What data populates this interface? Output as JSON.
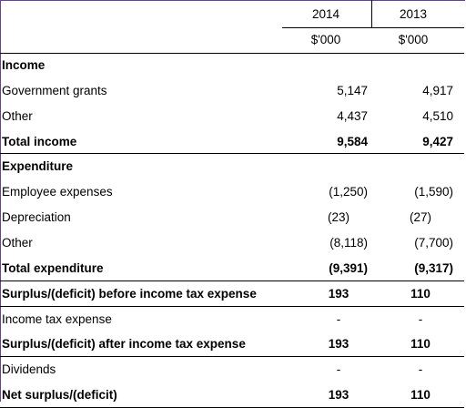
{
  "header": {
    "years": [
      "2014",
      "2013"
    ],
    "units": [
      "$'000",
      "$'000"
    ]
  },
  "rows": [
    {
      "label": "Income",
      "v2014": "",
      "v2013": "",
      "bold": true
    },
    {
      "label": "Government grants",
      "v2014": "5,147",
      "v2013": "4,917"
    },
    {
      "label": "Other",
      "v2014": "4,437",
      "v2013": "4,510"
    },
    {
      "label": "Total income",
      "v2014": "9,584",
      "v2013": "9,427",
      "bold": true
    },
    {
      "label": "Expenditure",
      "v2014": "",
      "v2013": "",
      "bold": true
    },
    {
      "label": "Employee expenses",
      "v2014": "(1,250)",
      "v2013": "(1,590)"
    },
    {
      "label": "Depreciation",
      "v2014": "(23)",
      "v2013": "(27)"
    },
    {
      "label": "Other",
      "v2014": "(8,118)",
      "v2013": "(7,700)"
    },
    {
      "label": "Total expenditure",
      "v2014": "(9,391)",
      "v2013": "(9,317)",
      "bold": true
    },
    {
      "label": "Surplus/(deficit) before income tax expense",
      "v2014": "193",
      "v2013": "110",
      "bold": true
    },
    {
      "label": "Income tax expense",
      "v2014": "-",
      "v2013": "-"
    },
    {
      "label": "Surplus/(deficit) after income tax expense",
      "v2014": "193",
      "v2013": "110",
      "bold": true
    },
    {
      "label": "Dividends",
      "v2014": "-",
      "v2013": "-"
    },
    {
      "label": "Net surplus/(deficit)",
      "v2014": "193",
      "v2013": "110",
      "bold": true
    }
  ]
}
